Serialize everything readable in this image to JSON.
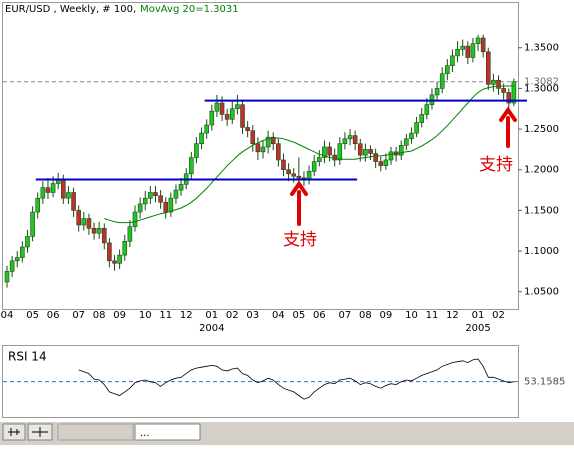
{
  "chart_data": [
    {
      "type": "candlestick",
      "title": "EUR/USD , Weekly, # 100,",
      "ma_label": "MovAvg 20=1.3031",
      "categories": [
        "04",
        null,
        null,
        null,
        null,
        "05",
        null,
        null,
        null,
        "06",
        null,
        null,
        null,
        null,
        "07",
        null,
        null,
        null,
        "08",
        null,
        null,
        null,
        "09",
        null,
        null,
        null,
        null,
        "10",
        null,
        null,
        null,
        "11",
        null,
        null,
        null,
        "12",
        null,
        null,
        null,
        null,
        "01",
        null,
        null,
        null,
        "02",
        null,
        null,
        null,
        "03",
        null,
        null,
        null,
        null,
        "04",
        null,
        null,
        null,
        "05",
        null,
        null,
        null,
        "06",
        null,
        null,
        null,
        null,
        "07",
        null,
        null,
        null,
        "08",
        null,
        null,
        null,
        "09",
        null,
        null,
        null,
        null,
        "10",
        null,
        null,
        null,
        "11",
        null,
        null,
        null,
        "12",
        null,
        null,
        null,
        null,
        "01",
        null,
        null,
        null,
        "02",
        null,
        null,
        null
      ],
      "year_labels": [
        null,
        null,
        null,
        null,
        null,
        null,
        null,
        null,
        null,
        null,
        null,
        null,
        null,
        null,
        null,
        null,
        null,
        null,
        null,
        null,
        null,
        null,
        null,
        null,
        null,
        null,
        null,
        null,
        null,
        null,
        null,
        null,
        null,
        null,
        null,
        null,
        null,
        null,
        null,
        null,
        "2004",
        null,
        null,
        null,
        null,
        null,
        null,
        null,
        null,
        null,
        null,
        null,
        null,
        null,
        null,
        null,
        null,
        null,
        null,
        null,
        null,
        null,
        null,
        null,
        null,
        null,
        null,
        null,
        null,
        null,
        null,
        null,
        null,
        null,
        null,
        null,
        null,
        null,
        null,
        null,
        null,
        null,
        null,
        null,
        null,
        null,
        null,
        null,
        null,
        null,
        null,
        null,
        "2005",
        null,
        null,
        null,
        null,
        null,
        null,
        null
      ],
      "open": [
        1.062,
        1.075,
        1.088,
        1.092,
        1.105,
        1.118,
        1.148,
        1.165,
        1.178,
        1.172,
        1.183,
        1.188,
        1.165,
        1.172,
        1.15,
        1.132,
        1.14,
        1.128,
        1.122,
        1.128,
        1.11,
        1.088,
        1.085,
        1.095,
        1.112,
        1.13,
        1.148,
        1.158,
        1.165,
        1.172,
        1.168,
        1.16,
        1.148,
        1.165,
        1.175,
        1.182,
        1.195,
        1.215,
        1.232,
        1.245,
        1.255,
        1.272,
        1.282,
        1.268,
        1.262,
        1.275,
        1.28,
        1.252,
        1.248,
        1.232,
        1.222,
        1.228,
        1.24,
        1.232,
        1.212,
        1.2,
        1.195,
        1.192,
        1.19,
        1.188,
        1.198,
        1.21,
        1.215,
        1.228,
        1.218,
        1.212,
        1.232,
        1.238,
        1.242,
        1.232,
        1.218,
        1.225,
        1.22,
        1.21,
        1.205,
        1.212,
        1.222,
        1.218,
        1.23,
        1.238,
        1.245,
        1.258,
        1.268,
        1.28,
        1.292,
        1.3,
        1.318,
        1.328,
        1.34,
        1.348,
        1.352,
        1.338,
        1.355,
        1.362,
        1.345,
        1.305,
        1.31,
        1.3,
        1.295,
        1.282
      ],
      "high": [
        1.082,
        1.094,
        1.1,
        1.112,
        1.126,
        1.155,
        1.172,
        1.186,
        1.19,
        1.192,
        1.196,
        1.194,
        1.18,
        1.178,
        1.156,
        1.148,
        1.146,
        1.135,
        1.136,
        1.134,
        1.116,
        1.095,
        1.102,
        1.12,
        1.138,
        1.156,
        1.166,
        1.174,
        1.18,
        1.18,
        1.175,
        1.166,
        1.172,
        1.182,
        1.19,
        1.202,
        1.222,
        1.24,
        1.252,
        1.262,
        1.28,
        1.292,
        1.29,
        1.275,
        1.284,
        1.292,
        1.286,
        1.26,
        1.255,
        1.24,
        1.236,
        1.248,
        1.246,
        1.238,
        1.22,
        1.208,
        1.202,
        1.215,
        1.198,
        1.205,
        1.218,
        1.224,
        1.236,
        1.234,
        1.226,
        1.24,
        1.246,
        1.25,
        1.248,
        1.238,
        1.232,
        1.23,
        1.226,
        1.216,
        1.22,
        1.228,
        1.228,
        1.236,
        1.244,
        1.252,
        1.265,
        1.276,
        1.288,
        1.3,
        1.308,
        1.326,
        1.336,
        1.348,
        1.358,
        1.36,
        1.358,
        1.362,
        1.366,
        1.366,
        1.35,
        1.318,
        1.316,
        1.306,
        1.3,
        1.312
      ],
      "low": [
        1.055,
        1.068,
        1.08,
        1.086,
        1.098,
        1.112,
        1.14,
        1.158,
        1.164,
        1.166,
        1.176,
        1.158,
        1.158,
        1.142,
        1.124,
        1.125,
        1.12,
        1.114,
        1.115,
        1.102,
        1.08,
        1.076,
        1.078,
        1.088,
        1.105,
        1.124,
        1.14,
        1.15,
        1.158,
        1.16,
        1.152,
        1.14,
        1.142,
        1.158,
        1.168,
        1.176,
        1.188,
        1.208,
        1.225,
        1.238,
        1.248,
        1.265,
        1.26,
        1.254,
        1.256,
        1.268,
        1.244,
        1.24,
        1.222,
        1.212,
        1.214,
        1.22,
        1.224,
        1.204,
        1.192,
        1.186,
        1.184,
        1.18,
        1.18,
        1.182,
        1.192,
        1.204,
        1.208,
        1.21,
        1.204,
        1.206,
        1.225,
        1.23,
        1.224,
        1.21,
        1.21,
        1.212,
        1.202,
        1.198,
        1.2,
        1.206,
        1.21,
        1.212,
        1.224,
        1.232,
        1.24,
        1.252,
        1.262,
        1.274,
        1.286,
        1.294,
        1.31,
        1.32,
        1.332,
        1.34,
        1.33,
        1.332,
        1.346,
        1.338,
        1.298,
        1.296,
        1.292,
        1.286,
        1.276,
        1.278
      ],
      "close": [
        1.075,
        1.088,
        1.092,
        1.105,
        1.118,
        1.148,
        1.165,
        1.178,
        1.172,
        1.183,
        1.188,
        1.165,
        1.172,
        1.15,
        1.132,
        1.14,
        1.128,
        1.122,
        1.128,
        1.11,
        1.088,
        1.085,
        1.095,
        1.112,
        1.13,
        1.148,
        1.158,
        1.165,
        1.172,
        1.168,
        1.16,
        1.148,
        1.165,
        1.175,
        1.182,
        1.195,
        1.215,
        1.232,
        1.245,
        1.255,
        1.272,
        1.282,
        1.268,
        1.262,
        1.275,
        1.28,
        1.252,
        1.248,
        1.232,
        1.222,
        1.228,
        1.24,
        1.232,
        1.212,
        1.2,
        1.195,
        1.192,
        1.19,
        1.188,
        1.198,
        1.21,
        1.215,
        1.228,
        1.218,
        1.212,
        1.232,
        1.238,
        1.242,
        1.232,
        1.218,
        1.225,
        1.22,
        1.21,
        1.205,
        1.212,
        1.222,
        1.218,
        1.23,
        1.238,
        1.245,
        1.258,
        1.268,
        1.28,
        1.292,
        1.3,
        1.318,
        1.328,
        1.34,
        1.348,
        1.352,
        1.338,
        1.355,
        1.362,
        1.345,
        1.305,
        1.31,
        1.3,
        1.295,
        1.282,
        1.3082
      ],
      "up_color": "#22c322",
      "down_color": "#c0302a",
      "wick_color": "#1a4a1a",
      "ma": {
        "color": "#008000",
        "values": [
          null,
          null,
          null,
          null,
          null,
          null,
          null,
          null,
          null,
          null,
          null,
          null,
          null,
          null,
          null,
          null,
          null,
          null,
          null,
          1.14,
          1.138,
          1.136,
          1.135,
          1.135,
          1.135,
          1.136,
          1.138,
          1.14,
          1.142,
          1.144,
          1.146,
          1.147,
          1.149,
          1.151,
          1.153,
          1.156,
          1.16,
          1.165,
          1.171,
          1.177,
          1.184,
          1.191,
          1.198,
          1.205,
          1.211,
          1.217,
          1.222,
          1.226,
          1.23,
          1.233,
          1.236,
          1.238,
          1.239,
          1.239,
          1.238,
          1.236,
          1.234,
          1.231,
          1.228,
          1.225,
          1.222,
          1.219,
          1.217,
          1.215,
          1.214,
          1.213,
          1.213,
          1.213,
          1.213,
          1.214,
          1.215,
          1.216,
          1.217,
          1.217,
          1.218,
          1.219,
          1.22,
          1.221,
          1.222,
          1.223,
          1.226,
          1.229,
          1.233,
          1.237,
          1.242,
          1.248,
          1.254,
          1.261,
          1.268,
          1.275,
          1.282,
          1.289,
          1.295,
          1.299,
          1.301,
          1.302,
          1.303,
          1.303,
          1.303,
          1.3031
        ]
      },
      "support_lines": [
        {
          "value": 1.188,
          "from": 6,
          "to": 68
        },
        {
          "value": 1.285,
          "from": 39,
          "to": 99
        }
      ],
      "support_color": "#0000c0",
      "annotations": [
        "支持",
        "支持"
      ],
      "ylim": [
        1.03,
        1.405
      ],
      "yticks": [
        {
          "value": 1.05,
          "label": "1.0500"
        },
        {
          "value": 1.1,
          "label": "1.1000"
        },
        {
          "value": 1.15,
          "label": "1.1500"
        },
        {
          "value": 1.2,
          "label": "1.2000"
        },
        {
          "value": 1.25,
          "label": "1.2500"
        },
        {
          "value": 1.3,
          "label": "1.3000"
        },
        {
          "value": 1.35,
          "label": "1.3500"
        }
      ]
    },
    {
      "type": "line",
      "title": "RSI 14",
      "color": "#000000",
      "ref_color": "#3070c0",
      "values": [
        null,
        null,
        null,
        null,
        null,
        null,
        null,
        null,
        null,
        null,
        null,
        null,
        null,
        null,
        66,
        64,
        62,
        56,
        55,
        50,
        42,
        40,
        38,
        42,
        46,
        52,
        54,
        55,
        53,
        52,
        48,
        52,
        55,
        57,
        58,
        62,
        66,
        68,
        69,
        70,
        71,
        70,
        66,
        65,
        67,
        68,
        62,
        60,
        55,
        52,
        54,
        57,
        55,
        50,
        46,
        44,
        42,
        38,
        34,
        36,
        42,
        46,
        50,
        52,
        51,
        55,
        56,
        57,
        54,
        50,
        52,
        51,
        48,
        46,
        49,
        51,
        50,
        53,
        55,
        54,
        57,
        60,
        62,
        64,
        66,
        70,
        72,
        74,
        75,
        76,
        74,
        77,
        78,
        70,
        58,
        58,
        56,
        54,
        52,
        53.1585
      ],
      "ylim": [
        20,
        90
      ]
    }
  ],
  "toolbar": {
    "tab": "..."
  }
}
